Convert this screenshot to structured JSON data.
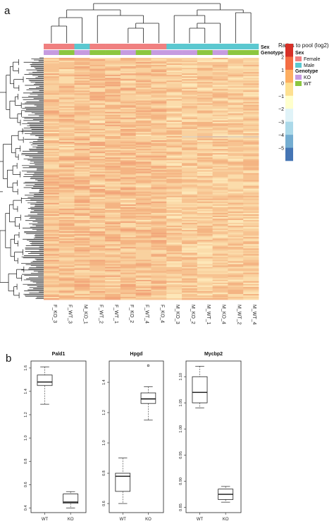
{
  "panels": {
    "a": "a",
    "b": "b"
  },
  "chart_data": [
    {
      "type": "heatmap",
      "samples": [
        "F_KO_3",
        "F_WT_3",
        "M_KO_1",
        "F_WT_2",
        "F_WT_1",
        "F_KO_2",
        "F_WT_4",
        "F_KO_4",
        "M_KO_3",
        "M_KO_2",
        "M_WT_1",
        "M_KO_4",
        "M_WT_2",
        "M_WT_4"
      ],
      "sex": [
        "Female",
        "Female",
        "Male",
        "Female",
        "Female",
        "Female",
        "Female",
        "Female",
        "Male",
        "Male",
        "Male",
        "Male",
        "Male",
        "Male"
      ],
      "genotype": [
        "KO",
        "WT",
        "KO",
        "WT",
        "WT",
        "KO",
        "WT",
        "KO",
        "KO",
        "KO",
        "WT",
        "KO",
        "WT",
        "WT"
      ],
      "annotation_rows": [
        "Sex",
        "Genotype"
      ],
      "color_scale": {
        "title": "Ratios to pool (log2)",
        "ticks": [
          "2",
          "1",
          "0",
          "−1",
          "−2",
          "−3",
          "−4",
          "−5"
        ],
        "colors": [
          "#d73027",
          "#f46d43",
          "#fdae61",
          "#fee090",
          "#ffffcc",
          "#e0f3f8",
          "#abd9e9",
          "#74add1",
          "#4575b4"
        ]
      },
      "legend": {
        "sex_title": "Sex",
        "sex_items": [
          {
            "label": "Female",
            "color": "#f08080"
          },
          {
            "label": "Male",
            "color": "#5bc8d0"
          }
        ],
        "genotype_title": "Genotype",
        "genotype_items": [
          {
            "label": "KO",
            "color": "#c69be0"
          },
          {
            "label": "WT",
            "color": "#8cc63f"
          }
        ]
      },
      "col_tree": [
        [
          0,
          1,
          2
        ],
        [
          3,
          4,
          5
        ],
        [
          9,
          10,
          11
        ]
      ]
    },
    {
      "type": "box",
      "categories": [
        "WT",
        "KO"
      ],
      "panels": [
        {
          "gene": "Pald1",
          "ylim": [
            0.36,
            1.66
          ],
          "yticks": [
            "0.4",
            "0.6",
            "0.8",
            "1.0",
            "1.2",
            "1.4",
            "1.6"
          ],
          "ytick_values": [
            0.4,
            0.6,
            0.8,
            1.0,
            1.2,
            1.4,
            1.6
          ],
          "boxes": [
            {
              "min": 1.29,
              "q1": 1.45,
              "median": 1.48,
              "q3": 1.54,
              "max": 1.61
            },
            {
              "min": 0.4,
              "q1": 0.44,
              "median": 0.45,
              "q3": 0.52,
              "max": 0.54
            }
          ],
          "outliers": []
        },
        {
          "gene": "Hpgd",
          "ylim": [
            0.54,
            1.54
          ],
          "yticks": [
            "0.6",
            "0.8",
            "1.0",
            "1.2",
            "1.4"
          ],
          "ytick_values": [
            0.6,
            0.8,
            1.0,
            1.2,
            1.4
          ],
          "boxes": [
            {
              "min": 0.6,
              "q1": 0.68,
              "median": 0.78,
              "q3": 0.8,
              "max": 0.9
            },
            {
              "min": 1.15,
              "q1": 1.26,
              "median": 1.29,
              "q3": 1.33,
              "max": 1.37
            }
          ],
          "outliers": [
            {
              "box": 1,
              "value": 1.51
            }
          ]
        },
        {
          "gene": "Mycbp2",
          "ylim": [
            0.84,
            1.13
          ],
          "yticks": [
            "0.85",
            "0.90",
            "0.95",
            "1.00",
            "1.05",
            "1.10"
          ],
          "ytick_values": [
            0.85,
            0.9,
            0.95,
            1.0,
            1.05,
            1.1
          ],
          "boxes": [
            {
              "min": 1.04,
              "q1": 1.05,
              "median": 1.07,
              "q3": 1.1,
              "max": 1.12
            },
            {
              "min": 0.86,
              "q1": 0.865,
              "median": 0.875,
              "q3": 0.885,
              "max": 0.89
            }
          ],
          "outliers": []
        }
      ]
    }
  ]
}
